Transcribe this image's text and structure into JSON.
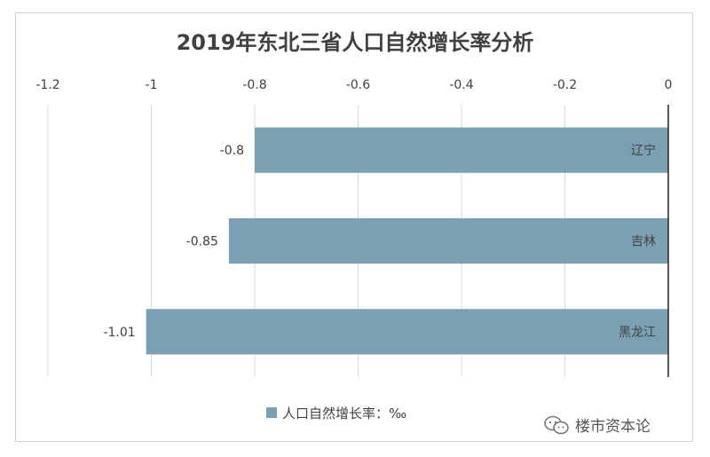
{
  "chart_data": {
    "type": "bar",
    "orientation": "horizontal",
    "title": "2019年东北三省人口自然增长率分析",
    "categories": [
      "辽宁",
      "吉林",
      "黑龙江"
    ],
    "series": [
      {
        "name": "人口自然增长率：‰",
        "values": [
          -0.8,
          -0.85,
          -1.01
        ],
        "color": "#7ba0b4"
      }
    ],
    "data_labels": [
      "-0.8",
      "-0.85",
      "-1.01"
    ],
    "xlim": [
      -1.2,
      0
    ],
    "xticks": [
      -1.2,
      -1,
      -0.8,
      -0.6,
      -0.4,
      -0.2,
      0
    ],
    "xtick_labels": [
      "-1.2",
      "-1",
      "-0.8",
      "-0.6",
      "-0.4",
      "-0.2",
      "0"
    ],
    "axis_position": "top",
    "grid": true,
    "legend_position": "bottom"
  },
  "watermark": {
    "text": "楼市资本论",
    "icon": "wechat-icon"
  }
}
